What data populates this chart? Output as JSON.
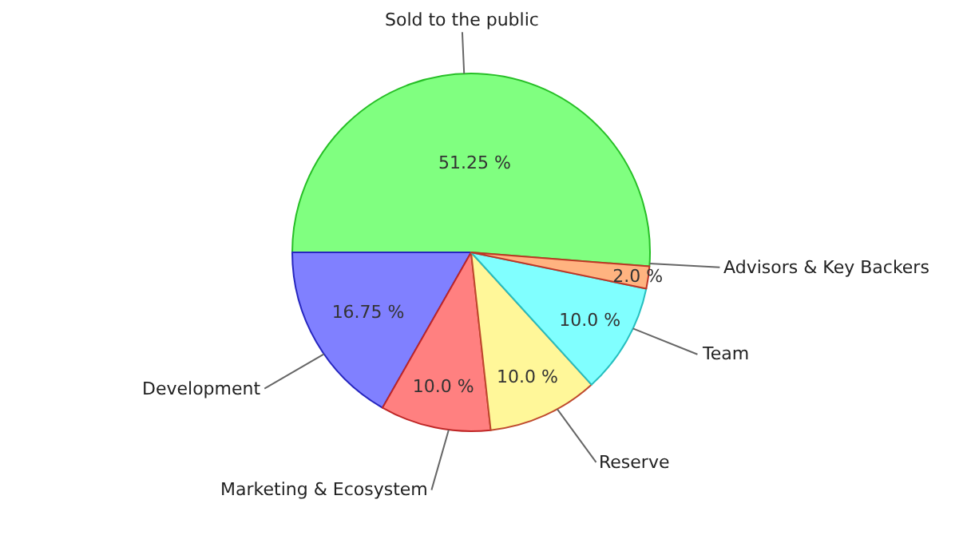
{
  "chart_data": {
    "type": "pie",
    "categories": [
      "Sold to the public",
      "Development",
      "Marketing & Ecosystem",
      "Reserve",
      "Team",
      "Advisors & Key Backers"
    ],
    "values": [
      51.25,
      16.75,
      10.0,
      10.0,
      10.0,
      2.0
    ],
    "value_labels": [
      "51.25 %",
      "16.75 %",
      "10.0 %",
      "10.0 %",
      "10.0 %",
      "2.0 %"
    ],
    "colors": [
      "#80ff80",
      "#8080ff",
      "#ff8080",
      "#fff799",
      "#80ffff",
      "#ffb380"
    ],
    "legend": false
  }
}
